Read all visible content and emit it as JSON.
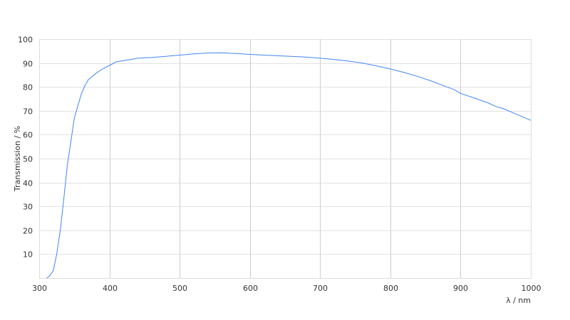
{
  "chart_data": {
    "type": "line",
    "title": "",
    "xlabel": "λ / nm",
    "ylabel": "Transmission / %",
    "xlim": [
      300,
      1000
    ],
    "ylim": [
      0,
      100
    ],
    "xticks": [
      300,
      400,
      500,
      600,
      700,
      800,
      900,
      1000
    ],
    "yticks": [
      10,
      20,
      30,
      40,
      50,
      60,
      70,
      80,
      90,
      100
    ],
    "grid": true,
    "line_color": "#4285f4",
    "series": [
      {
        "x": [
          311,
          315,
          320,
          325,
          330,
          335,
          340,
          345,
          350,
          355,
          360,
          365,
          370,
          380,
          390,
          400,
          410,
          420,
          430,
          440,
          460,
          480,
          500,
          520,
          540,
          560,
          580,
          600,
          620,
          650,
          680,
          700,
          720,
          740,
          760,
          780,
          800,
          820,
          840,
          860,
          880,
          890,
          900,
          920,
          940,
          950,
          960,
          980,
          1000
        ],
        "y": [
          0,
          1,
          3,
          10,
          20,
          33,
          47,
          57,
          67,
          72,
          77,
          80.5,
          83,
          85.5,
          87.5,
          89,
          90.5,
          91,
          91.5,
          92,
          92.3,
          92.8,
          93.3,
          93.8,
          94.2,
          94.3,
          94,
          93.6,
          93.3,
          92.9,
          92.5,
          92,
          91.5,
          90.8,
          90,
          88.8,
          87.5,
          86,
          84.3,
          82.3,
          80,
          79,
          77.3,
          75.3,
          73.2,
          71.8,
          71,
          68.5,
          66
        ]
      }
    ]
  }
}
